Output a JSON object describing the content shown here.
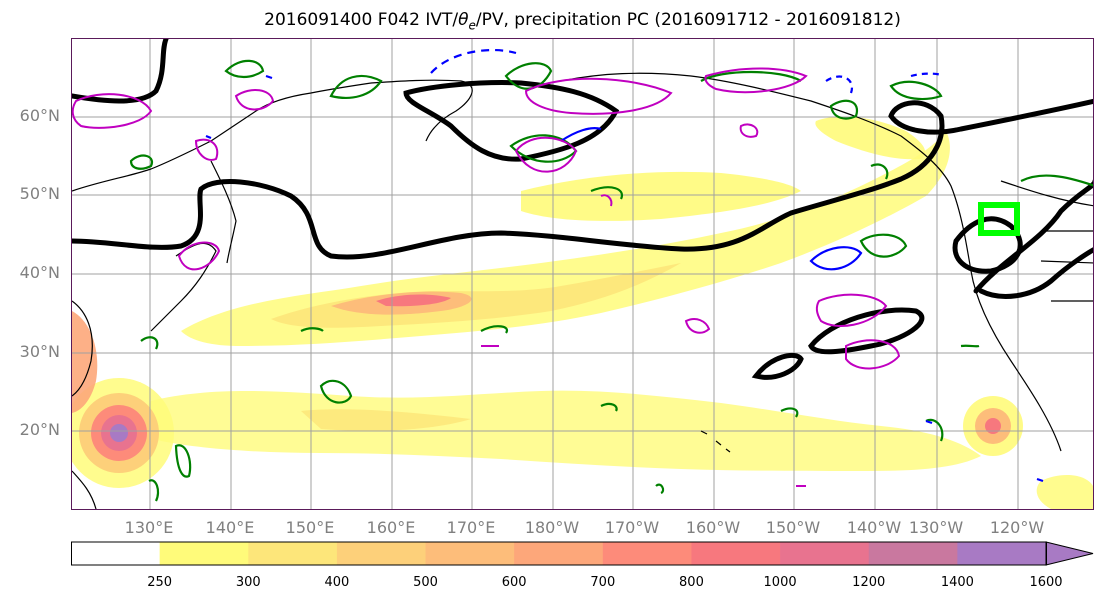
{
  "title": {
    "prefix": "2016091400 F042 IVT/",
    "theta": "θ",
    "theta_sub": "e",
    "suffix": "/PV, precipitation PC (2016091712 - 2016091812)"
  },
  "lat_labels": [
    "60°N",
    "50°N",
    "40°N",
    "30°N",
    "20°N"
  ],
  "lon_labels": [
    "130°E",
    "140°E",
    "150°E",
    "160°E",
    "170°E",
    "180°W",
    "170°W",
    "160°W",
    "150°W",
    "140°W",
    "130°W",
    "120°W"
  ],
  "colorbar": {
    "levels": [
      "250",
      "300",
      "400",
      "500",
      "600",
      "700",
      "800",
      "1000",
      "1200",
      "1400",
      "1600"
    ],
    "colors": [
      "#ffffff",
      "#fffb7a",
      "#fde67a",
      "#fdd07a",
      "#fdbd7a",
      "#fda77a",
      "#fd8b7a",
      "#f7787e",
      "#e8738f",
      "#c9789f",
      "#a87ac4"
    ]
  },
  "overlay_colors": {
    "pv_contour": "#000000",
    "theta_positive": "#008000",
    "theta_negative": "#0000ff",
    "precip_pc": "#c000c0",
    "target_box": "#00ff00"
  }
}
